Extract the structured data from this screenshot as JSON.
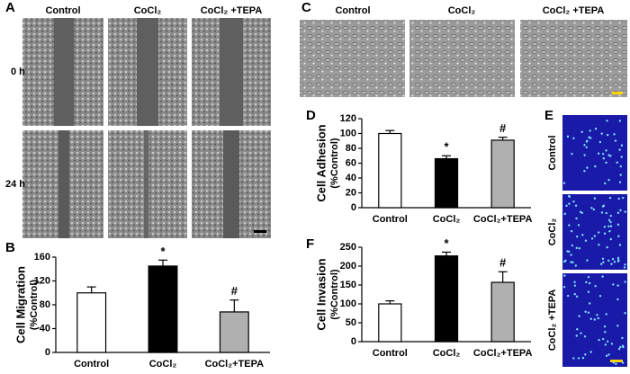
{
  "panel_labels": [
    "A",
    "B",
    "C",
    "D",
    "E",
    "F"
  ],
  "figure_a": {
    "columns": [
      "Control",
      "CoCl₂",
      "CoCl₂ +TEPA"
    ],
    "rows": [
      "0 h",
      "24 h"
    ]
  },
  "figure_c": {
    "columns": [
      "Control",
      "CoCl₂",
      "CoCl₂ +TEPA"
    ]
  },
  "figure_e": {
    "rows": [
      "Control",
      "CoCl₂",
      "CoCl₂ +TEPA"
    ]
  },
  "chart_data": [
    {
      "type": "bar",
      "ylabel": [
        "Cell Migration",
        "(%Control)"
      ],
      "categories": [
        "Control",
        "CoCl₂",
        "CoCl₂+TEPA"
      ],
      "values": [
        100,
        145,
        68
      ],
      "errors": [
        10,
        10,
        20
      ],
      "annotations": [
        null,
        "*",
        "#"
      ],
      "colors": [
        "#ffffff",
        "#000000",
        "#b0b0b0"
      ],
      "ylim": [
        0,
        160
      ],
      "yticks": [
        0,
        40,
        80,
        120,
        160
      ]
    },
    {
      "type": "bar",
      "ylabel": [
        "Cell Adhesion",
        "(%Control)"
      ],
      "categories": [
        "Control",
        "CoCl₂",
        "CoCl₂+TEPA"
      ],
      "values": [
        100,
        66,
        91
      ],
      "errors": [
        4,
        4,
        4
      ],
      "annotations": [
        null,
        "*",
        "#"
      ],
      "colors": [
        "#ffffff",
        "#000000",
        "#b0b0b0"
      ],
      "ylim": [
        0,
        120
      ],
      "yticks": [
        0,
        20,
        40,
        60,
        80,
        100,
        120
      ]
    },
    {
      "type": "bar",
      "ylabel": [
        "Cell Invasion",
        "(%Control)"
      ],
      "categories": [
        "Control",
        "CoCl₂",
        "CoCl₂+TEPA"
      ],
      "values": [
        100,
        227,
        157
      ],
      "errors": [
        8,
        10,
        28
      ],
      "annotations": [
        null,
        "*",
        "#"
      ],
      "colors": [
        "#ffffff",
        "#000000",
        "#b0b0b0"
      ],
      "ylim": [
        0,
        250
      ],
      "yticks": [
        0,
        50,
        100,
        150,
        200,
        250
      ]
    }
  ]
}
